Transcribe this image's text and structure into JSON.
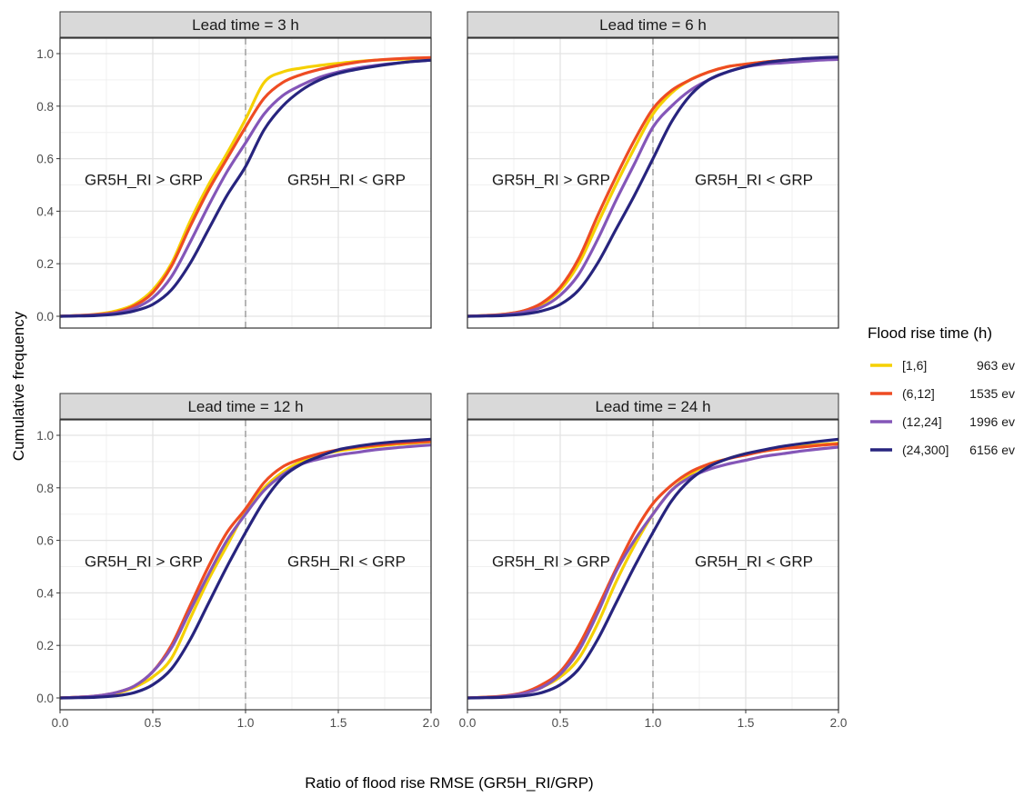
{
  "axis_labels": {
    "x": "Ratio of flood rise RMSE (GR5H_RI/GRP)",
    "y": "Cumulative frequency"
  },
  "annotations": {
    "left": "GR5H_RI > GRP",
    "right": "GR5H_RI < GRP"
  },
  "legend": {
    "title": "Flood rise time (h)",
    "items": [
      {
        "label": "[1,6]",
        "count": "963 ev",
        "color": "#f5d000"
      },
      {
        "label": "(6,12]",
        "count": "1535 ev",
        "color": "#ee4c23"
      },
      {
        "label": "(12,24]",
        "count": "1996 ev",
        "color": "#8456b8"
      },
      {
        "label": "(24,300]",
        "count": "6156 ev",
        "color": "#27247e"
      }
    ]
  },
  "chart_data": {
    "type": "line",
    "xlim": [
      0,
      2
    ],
    "ylim": [
      0,
      1
    ],
    "x_ticks": [
      "0.0",
      "0.5",
      "1.0",
      "1.5",
      "2.0"
    ],
    "y_ticks": [
      "0.0",
      "0.2",
      "0.4",
      "0.6",
      "0.8",
      "1.0"
    ],
    "reference_line_x": 1.0,
    "grid": true,
    "legend_position": "right",
    "x": [
      0.0,
      0.1,
      0.2,
      0.3,
      0.4,
      0.5,
      0.6,
      0.7,
      0.8,
      0.9,
      1.0,
      1.1,
      1.2,
      1.3,
      1.4,
      1.5,
      1.6,
      1.7,
      1.8,
      1.9,
      2.0
    ],
    "panels": [
      {
        "title": "Lead time = 3 h",
        "series": [
          {
            "name": "[1,6]",
            "values": [
              0.0,
              0.003,
              0.008,
              0.02,
              0.045,
              0.1,
              0.2,
              0.36,
              0.5,
              0.62,
              0.75,
              0.89,
              0.93,
              0.945,
              0.955,
              0.963,
              0.97,
              0.975,
              0.978,
              0.98,
              0.982
            ]
          },
          {
            "name": "(6,12]",
            "values": [
              0.0,
              0.003,
              0.007,
              0.015,
              0.04,
              0.09,
              0.19,
              0.34,
              0.48,
              0.6,
              0.72,
              0.83,
              0.89,
              0.92,
              0.94,
              0.955,
              0.967,
              0.975,
              0.98,
              0.983,
              0.985
            ]
          },
          {
            "name": "(12,24]",
            "values": [
              0.0,
              0.002,
              0.005,
              0.012,
              0.03,
              0.07,
              0.15,
              0.28,
              0.42,
              0.55,
              0.66,
              0.77,
              0.84,
              0.88,
              0.91,
              0.93,
              0.945,
              0.955,
              0.963,
              0.97,
              0.975
            ]
          },
          {
            "name": "(24,300]",
            "values": [
              0.0,
              0.001,
              0.003,
              0.008,
              0.02,
              0.045,
              0.1,
              0.2,
              0.33,
              0.46,
              0.57,
              0.71,
              0.8,
              0.86,
              0.9,
              0.925,
              0.94,
              0.952,
              0.962,
              0.97,
              0.975
            ]
          }
        ]
      },
      {
        "title": "Lead time = 6 h",
        "series": [
          {
            "name": "[1,6]",
            "values": [
              0.0,
              0.003,
              0.008,
              0.02,
              0.045,
              0.1,
              0.2,
              0.35,
              0.5,
              0.64,
              0.77,
              0.85,
              0.9,
              0.93,
              0.95,
              0.96,
              0.968,
              0.974,
              0.978,
              0.982,
              0.985
            ]
          },
          {
            "name": "(6,12]",
            "values": [
              0.0,
              0.003,
              0.008,
              0.02,
              0.05,
              0.11,
              0.22,
              0.38,
              0.53,
              0.67,
              0.79,
              0.86,
              0.9,
              0.93,
              0.95,
              0.96,
              0.968,
              0.974,
              0.978,
              0.982,
              0.985
            ]
          },
          {
            "name": "(12,24]",
            "values": [
              0.0,
              0.002,
              0.006,
              0.015,
              0.035,
              0.08,
              0.16,
              0.29,
              0.44,
              0.58,
              0.72,
              0.8,
              0.86,
              0.9,
              0.93,
              0.95,
              0.96,
              0.965,
              0.97,
              0.975,
              0.978
            ]
          },
          {
            "name": "(24,300]",
            "values": [
              0.0,
              0.001,
              0.003,
              0.008,
              0.02,
              0.045,
              0.1,
              0.2,
              0.33,
              0.46,
              0.6,
              0.74,
              0.84,
              0.9,
              0.93,
              0.95,
              0.965,
              0.974,
              0.98,
              0.984,
              0.987
            ]
          }
        ]
      },
      {
        "title": "Lead time = 12 h",
        "series": [
          {
            "name": "[1,6]",
            "values": [
              0.0,
              0.003,
              0.007,
              0.017,
              0.04,
              0.08,
              0.15,
              0.3,
              0.45,
              0.58,
              0.71,
              0.8,
              0.86,
              0.9,
              0.925,
              0.94,
              0.95,
              0.958,
              0.965,
              0.97,
              0.975
            ]
          },
          {
            "name": "(6,12]",
            "values": [
              0.0,
              0.003,
              0.008,
              0.02,
              0.045,
              0.1,
              0.2,
              0.35,
              0.5,
              0.63,
              0.72,
              0.82,
              0.88,
              0.91,
              0.93,
              0.945,
              0.955,
              0.962,
              0.968,
              0.973,
              0.977
            ]
          },
          {
            "name": "(12,24]",
            "values": [
              0.0,
              0.003,
              0.008,
              0.02,
              0.045,
              0.1,
              0.19,
              0.33,
              0.47,
              0.6,
              0.7,
              0.79,
              0.85,
              0.89,
              0.91,
              0.925,
              0.935,
              0.945,
              0.952,
              0.958,
              0.963
            ]
          },
          {
            "name": "(24,300]",
            "values": [
              0.0,
              0.001,
              0.003,
              0.008,
              0.02,
              0.05,
              0.11,
              0.22,
              0.36,
              0.5,
              0.63,
              0.75,
              0.84,
              0.89,
              0.92,
              0.945,
              0.958,
              0.968,
              0.975,
              0.98,
              0.985
            ]
          }
        ]
      },
      {
        "title": "Lead time = 24 h",
        "series": [
          {
            "name": "[1,6]",
            "values": [
              0.0,
              0.003,
              0.007,
              0.017,
              0.04,
              0.08,
              0.15,
              0.28,
              0.44,
              0.58,
              0.7,
              0.79,
              0.85,
              0.89,
              0.91,
              0.93,
              0.94,
              0.95,
              0.958,
              0.965,
              0.97
            ]
          },
          {
            "name": "(6,12]",
            "values": [
              0.0,
              0.003,
              0.008,
              0.02,
              0.05,
              0.1,
              0.2,
              0.34,
              0.49,
              0.63,
              0.74,
              0.81,
              0.86,
              0.89,
              0.91,
              0.925,
              0.94,
              0.95,
              0.955,
              0.962,
              0.967
            ]
          },
          {
            "name": "(12,24]",
            "values": [
              0.0,
              0.002,
              0.006,
              0.017,
              0.04,
              0.09,
              0.18,
              0.32,
              0.48,
              0.6,
              0.7,
              0.79,
              0.84,
              0.87,
              0.89,
              0.905,
              0.92,
              0.93,
              0.94,
              0.948,
              0.955
            ]
          },
          {
            "name": "(24,300]",
            "values": [
              0.0,
              0.001,
              0.003,
              0.008,
              0.02,
              0.05,
              0.11,
              0.22,
              0.36,
              0.5,
              0.63,
              0.75,
              0.83,
              0.88,
              0.91,
              0.93,
              0.945,
              0.958,
              0.968,
              0.977,
              0.985
            ]
          }
        ]
      }
    ]
  }
}
